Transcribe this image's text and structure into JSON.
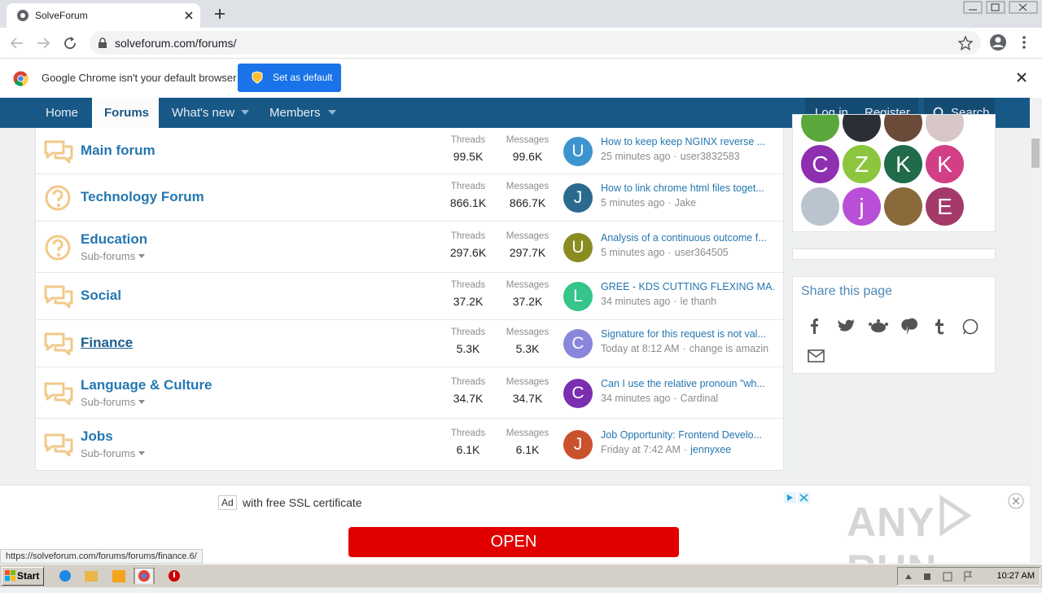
{
  "browser": {
    "tab_title": "SolveForum",
    "url": "solveforum.com/forums/",
    "status_url": "https://solveforum.com/forums/forums/finance.6/"
  },
  "infobar": {
    "message": "Google Chrome isn't your default browser",
    "button": "Set as default"
  },
  "nav": {
    "items": [
      "Home",
      "Forums",
      "What's new",
      "Members"
    ],
    "login": "Log in",
    "register": "Register",
    "search": "Search"
  },
  "labels": {
    "threads": "Threads",
    "messages": "Messages"
  },
  "forums": [
    {
      "name": "Main forum",
      "threads": "99.5K",
      "messages": "99.6K",
      "avatar": "U",
      "avatar_color": "#3d95cf",
      "latest": "How to keep keep NGINX reverse ...",
      "time": "25 minutes ago",
      "user": "user3832583"
    },
    {
      "name": "Technology Forum",
      "threads": "866.1K",
      "messages": "866.7K",
      "avatar": "J",
      "avatar_color": "#2b6a8f",
      "latest": "How to link chrome html files toget...",
      "time": "5 minutes ago",
      "user": "Jake"
    },
    {
      "name": "Education",
      "sub": "Sub-forums",
      "threads": "297.6K",
      "messages": "297.7K",
      "avatar": "U",
      "avatar_color": "#8a8c22",
      "latest": "Analysis of a continuous outcome f...",
      "time": "5 minutes ago",
      "user": "user364505"
    },
    {
      "name": "Social",
      "threads": "37.2K",
      "messages": "37.2K",
      "avatar": "L",
      "avatar_color": "#35c48a",
      "latest": "GREE - KDS CUTTING FLEXING MA...",
      "time": "34 minutes ago",
      "user": "le thanh"
    },
    {
      "name": "Finance",
      "threads": "5.3K",
      "messages": "5.3K",
      "avatar": "C",
      "avatar_color": "#8a86dc",
      "latest": "Signature for this request is not val...",
      "time": "Today at 8:12 AM",
      "user": "change is amazin"
    },
    {
      "name": "Language & Culture",
      "sub": "Sub-forums",
      "threads": "34.7K",
      "messages": "34.7K",
      "avatar": "C",
      "avatar_color": "#7a2fb0",
      "latest": "Can I use the relative pronoun \"wh...",
      "time": "34 minutes ago",
      "user": "Cardinal"
    },
    {
      "name": "Jobs",
      "sub": "Sub-forums",
      "threads": "6.1K",
      "messages": "6.1K",
      "avatar": "J",
      "avatar_color": "#c9512b",
      "latest": "Job Opportunity: Frontend Develo...",
      "time": "Friday at 7:42 AM",
      "user": "jennyxee"
    }
  ],
  "sidebar": {
    "avatars": [
      {
        "letter": "C",
        "color": "#8e2fb0"
      },
      {
        "letter": "Z",
        "color": "#8cc63f"
      },
      {
        "letter": "K",
        "color": "#1f6b4a"
      },
      {
        "letter": "K",
        "color": "#d33f86"
      },
      {
        "letter": "j",
        "color": "#b84fd6"
      },
      {
        "letter": "E",
        "color": "#a33a6a"
      }
    ],
    "share_title": "Share this page"
  },
  "ad": {
    "badge": "Ad",
    "text": "with free SSL certificate",
    "button": "OPEN",
    "watermark": [
      "ANY",
      "RUN"
    ]
  },
  "taskbar": {
    "start": "Start",
    "clock": "10:27 AM"
  }
}
